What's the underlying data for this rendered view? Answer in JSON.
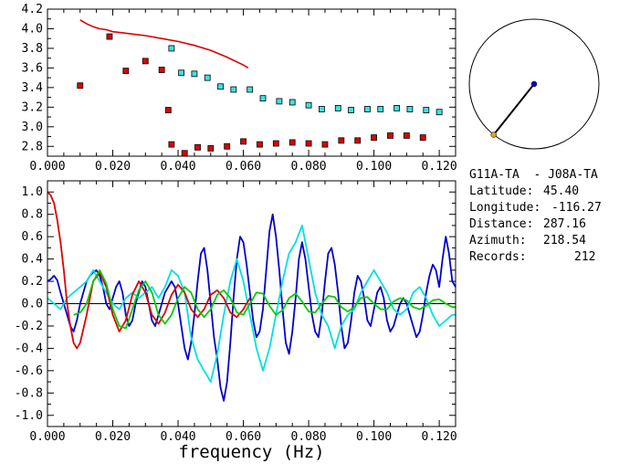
{
  "chart_data": [
    {
      "type": "scatter",
      "xlim": [
        0.0,
        0.125
      ],
      "ylim": [
        2.7,
        4.2
      ],
      "x_ticks": [
        "0.000",
        "0.020",
        "0.040",
        "0.060",
        "0.080",
        "0.100",
        "0.120"
      ],
      "y_ticks": [
        "2.8",
        "3.0",
        "3.2",
        "3.4",
        "3.6",
        "3.8",
        "4.0",
        "4.2"
      ],
      "series": [
        {
          "style": "red-line",
          "x": [
            0.01,
            0.012,
            0.014,
            0.016,
            0.018,
            0.02,
            0.025,
            0.03,
            0.035,
            0.04,
            0.045,
            0.05,
            0.055,
            0.06,
            0.0615
          ],
          "y": [
            4.09,
            4.05,
            4.02,
            4.0,
            3.99,
            3.97,
            3.95,
            3.93,
            3.9,
            3.87,
            3.83,
            3.78,
            3.71,
            3.63,
            3.6
          ]
        },
        {
          "style": "red-squares",
          "x": [
            0.01,
            0.019,
            0.024,
            0.03,
            0.035,
            0.037,
            0.038,
            0.042,
            0.046,
            0.05,
            0.055,
            0.06,
            0.065,
            0.07,
            0.075,
            0.08,
            0.085,
            0.09,
            0.095,
            0.1,
            0.105,
            0.11,
            0.115
          ],
          "y": [
            3.42,
            3.92,
            3.57,
            3.67,
            3.58,
            3.17,
            2.82,
            2.73,
            2.79,
            2.78,
            2.8,
            2.85,
            2.82,
            2.83,
            2.84,
            2.83,
            2.82,
            2.86,
            2.86,
            2.89,
            2.91,
            2.91,
            2.89
          ]
        },
        {
          "style": "cyan-squares",
          "x": [
            0.038,
            0.041,
            0.045,
            0.049,
            0.053,
            0.057,
            0.062,
            0.066,
            0.071,
            0.075,
            0.08,
            0.084,
            0.089,
            0.093,
            0.098,
            0.102,
            0.107,
            0.111,
            0.116,
            0.12
          ],
          "y": [
            3.8,
            3.55,
            3.54,
            3.5,
            3.41,
            3.38,
            3.38,
            3.29,
            3.26,
            3.25,
            3.22,
            3.18,
            3.19,
            3.17,
            3.18,
            3.18,
            3.19,
            3.18,
            3.17,
            3.15
          ]
        }
      ]
    },
    {
      "type": "line",
      "xlim": [
        0.0,
        0.125
      ],
      "ylim": [
        -1.1,
        1.1
      ],
      "x_ticks": [
        "0.000",
        "0.020",
        "0.040",
        "0.060",
        "0.080",
        "0.100",
        "0.120"
      ],
      "y_ticks": [
        "1.0",
        "0.8",
        "0.6",
        "0.4",
        "0.2",
        "0.0",
        "-0.2",
        "-0.4",
        "-0.6",
        "-0.8",
        "-1.0"
      ],
      "xlabel": "frequency (Hz)",
      "series": [
        {
          "color": "#0000cc",
          "x": [
            0.0,
            0.001,
            0.002,
            0.003,
            0.004,
            0.005,
            0.006,
            0.007,
            0.008,
            0.009,
            0.01,
            0.011,
            0.012,
            0.013,
            0.014,
            0.015,
            0.016,
            0.017,
            0.018,
            0.019,
            0.02,
            0.021,
            0.022,
            0.023,
            0.024,
            0.025,
            0.026,
            0.027,
            0.028,
            0.029,
            0.03,
            0.031,
            0.032,
            0.033,
            0.034,
            0.035,
            0.036,
            0.037,
            0.038,
            0.039,
            0.04,
            0.041,
            0.042,
            0.043,
            0.044,
            0.045,
            0.046,
            0.047,
            0.048,
            0.049,
            0.05,
            0.051,
            0.052,
            0.053,
            0.054,
            0.055,
            0.056,
            0.057,
            0.058,
            0.059,
            0.06,
            0.061,
            0.062,
            0.063,
            0.064,
            0.065,
            0.066,
            0.067,
            0.068,
            0.069,
            0.07,
            0.071,
            0.072,
            0.073,
            0.074,
            0.075,
            0.076,
            0.077,
            0.078,
            0.079,
            0.08,
            0.081,
            0.082,
            0.083,
            0.084,
            0.085,
            0.086,
            0.087,
            0.088,
            0.089,
            0.09,
            0.091,
            0.092,
            0.093,
            0.094,
            0.095,
            0.096,
            0.097,
            0.098,
            0.099,
            0.1,
            0.101,
            0.102,
            0.103,
            0.104,
            0.105,
            0.106,
            0.107,
            0.108,
            0.109,
            0.11,
            0.111,
            0.112,
            0.113,
            0.114,
            0.115,
            0.116,
            0.117,
            0.118,
            0.119,
            0.12,
            0.121,
            0.122,
            0.123,
            0.124,
            0.125
          ],
          "y": [
            0.2,
            0.22,
            0.25,
            0.21,
            0.1,
            0.0,
            -0.1,
            -0.2,
            -0.25,
            -0.15,
            0.0,
            0.1,
            0.2,
            0.25,
            0.28,
            0.3,
            0.25,
            0.15,
            0.0,
            -0.05,
            0.05,
            0.15,
            0.2,
            0.1,
            -0.1,
            -0.2,
            -0.15,
            0.0,
            0.1,
            0.2,
            0.15,
            0.0,
            -0.15,
            -0.2,
            -0.1,
            0.0,
            0.1,
            0.15,
            0.2,
            0.15,
            0.0,
            -0.2,
            -0.4,
            -0.5,
            -0.35,
            -0.1,
            0.2,
            0.45,
            0.5,
            0.3,
            0.0,
            -0.3,
            -0.5,
            -0.75,
            -0.87,
            -0.7,
            -0.35,
            0.05,
            0.4,
            0.6,
            0.55,
            0.35,
            0.1,
            -0.15,
            -0.3,
            -0.25,
            -0.05,
            0.3,
            0.65,
            0.8,
            0.6,
            0.3,
            -0.05,
            -0.35,
            -0.45,
            -0.25,
            0.05,
            0.4,
            0.55,
            0.4,
            0.15,
            -0.1,
            -0.25,
            -0.3,
            -0.1,
            0.2,
            0.45,
            0.5,
            0.35,
            0.1,
            -0.2,
            -0.4,
            -0.35,
            -0.15,
            0.1,
            0.25,
            0.2,
            0.05,
            -0.15,
            -0.2,
            -0.05,
            0.1,
            0.15,
            0.05,
            -0.15,
            -0.25,
            -0.2,
            -0.1,
            0.0,
            0.05,
            0.0,
            -0.1,
            -0.2,
            -0.3,
            -0.25,
            -0.1,
            0.1,
            0.25,
            0.35,
            0.3,
            0.15,
            0.4,
            0.6,
            0.45,
            0.2,
            0.15
          ]
        },
        {
          "color": "#00e0e0",
          "x": [
            0.0,
            0.002,
            0.004,
            0.006,
            0.008,
            0.01,
            0.012,
            0.014,
            0.016,
            0.018,
            0.02,
            0.022,
            0.024,
            0.026,
            0.028,
            0.03,
            0.032,
            0.034,
            0.036,
            0.038,
            0.04,
            0.042,
            0.044,
            0.046,
            0.048,
            0.05,
            0.052,
            0.054,
            0.056,
            0.058,
            0.06,
            0.062,
            0.064,
            0.066,
            0.068,
            0.07,
            0.072,
            0.074,
            0.076,
            0.078,
            0.08,
            0.082,
            0.084,
            0.086,
            0.088,
            0.09,
            0.092,
            0.094,
            0.096,
            0.098,
            0.1,
            0.102,
            0.104,
            0.106,
            0.108,
            0.11,
            0.112,
            0.114,
            0.116,
            0.118,
            0.12,
            0.122,
            0.124,
            0.125
          ],
          "y": [
            0.05,
            0.0,
            -0.05,
            0.05,
            0.1,
            0.15,
            0.2,
            0.3,
            0.2,
            0.1,
            0.0,
            -0.05,
            0.05,
            0.1,
            0.05,
            0.1,
            0.15,
            0.05,
            0.15,
            0.3,
            0.25,
            0.1,
            -0.3,
            -0.5,
            -0.6,
            -0.7,
            -0.45,
            -0.1,
            0.2,
            0.4,
            0.2,
            -0.1,
            -0.4,
            -0.6,
            -0.4,
            -0.1,
            0.2,
            0.45,
            0.55,
            0.7,
            0.4,
            0.1,
            -0.1,
            -0.2,
            -0.4,
            -0.2,
            -0.1,
            -0.05,
            0.1,
            0.2,
            0.3,
            0.2,
            0.1,
            -0.05,
            -0.1,
            -0.05,
            0.1,
            0.15,
            0.05,
            -0.1,
            -0.2,
            -0.15,
            -0.1,
            -0.1
          ]
        },
        {
          "color": "#dd0000",
          "x": [
            0.0,
            0.001,
            0.002,
            0.003,
            0.004,
            0.005,
            0.006,
            0.007,
            0.008,
            0.009,
            0.01,
            0.012,
            0.014,
            0.016,
            0.018,
            0.02,
            0.022,
            0.024,
            0.026,
            0.028,
            0.03,
            0.032,
            0.034,
            0.036,
            0.038,
            0.04,
            0.042,
            0.044,
            0.046,
            0.048,
            0.05,
            0.052,
            0.054,
            0.056,
            0.058,
            0.06,
            0.062
          ],
          "y": [
            1.0,
            0.97,
            0.9,
            0.75,
            0.55,
            0.3,
            0.0,
            -0.2,
            -0.35,
            -0.4,
            -0.35,
            -0.1,
            0.2,
            0.28,
            0.15,
            -0.1,
            -0.25,
            -0.15,
            0.08,
            0.2,
            0.1,
            -0.1,
            -0.18,
            -0.08,
            0.08,
            0.17,
            0.1,
            -0.05,
            -0.12,
            -0.05,
            0.08,
            0.12,
            0.05,
            -0.08,
            -0.12,
            -0.05,
            0.05
          ]
        },
        {
          "color": "#00cc00",
          "x": [
            0.008,
            0.01,
            0.012,
            0.014,
            0.016,
            0.018,
            0.02,
            0.022,
            0.024,
            0.026,
            0.028,
            0.03,
            0.032,
            0.034,
            0.036,
            0.038,
            0.04,
            0.042,
            0.044,
            0.046,
            0.048,
            0.05,
            0.052,
            0.054,
            0.056,
            0.058,
            0.06,
            0.062,
            0.064,
            0.066,
            0.068,
            0.07,
            0.072,
            0.074,
            0.076,
            0.078,
            0.08,
            0.082,
            0.084,
            0.086,
            0.088,
            0.09,
            0.092,
            0.094,
            0.096,
            0.098,
            0.1,
            0.102,
            0.104,
            0.106,
            0.108,
            0.11,
            0.112,
            0.114,
            0.116,
            0.118,
            0.12,
            0.122,
            0.124,
            0.125
          ],
          "y": [
            -0.1,
            -0.08,
            0.0,
            0.2,
            0.3,
            0.18,
            -0.05,
            -0.2,
            -0.22,
            -0.05,
            0.12,
            0.2,
            0.1,
            -0.1,
            -0.18,
            -0.1,
            0.05,
            0.15,
            0.1,
            -0.05,
            -0.12,
            -0.05,
            0.08,
            0.12,
            0.05,
            -0.08,
            -0.1,
            0.0,
            0.1,
            0.09,
            -0.02,
            -0.1,
            -0.06,
            0.05,
            0.09,
            0.02,
            -0.07,
            -0.08,
            0.0,
            0.07,
            0.06,
            -0.03,
            -0.07,
            -0.03,
            0.05,
            0.06,
            0.0,
            -0.05,
            -0.05,
            0.02,
            0.05,
            0.03,
            -0.03,
            -0.05,
            -0.02,
            0.03,
            0.04,
            0.0,
            -0.03,
            -0.03
          ]
        }
      ]
    }
  ],
  "compass": {
    "azimuth_deg": 218.54,
    "station_colors": {
      "center": "#0000cc",
      "edge": "#e0a020"
    }
  },
  "info": {
    "pair": "G11A-TA  - J08A-TA",
    "latitude_label": "Latitude:",
    "latitude": "45.40",
    "longitude_label": "Longitude:",
    "longitude": "-116.27",
    "distance_label": "Distance:",
    "distance": "287.16",
    "azimuth_label": "Azimuth:",
    "azimuth": "218.54",
    "records_label": "Records:",
    "records": "212"
  },
  "colors": {
    "red": "#dd0000",
    "cyan_fill": "#40e0e0",
    "blue": "#0000cc",
    "green": "#00cc00"
  }
}
